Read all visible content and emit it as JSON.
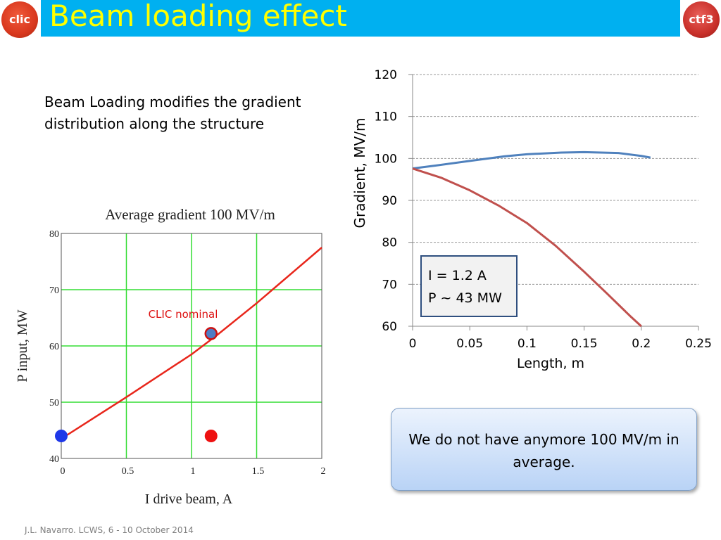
{
  "header": {
    "title": "Beam loading effect",
    "logo_left_text": "clic",
    "logo_right_text": "ctf3",
    "bar_color": "#00b0f0",
    "title_color": "#ffff00"
  },
  "intro_text": "Beam Loading modifies the gradient distribution along the structure",
  "callout_text": "We do not have anymore 100 MV/m in average.",
  "footer": "J.L. Navarro. LCWS, 6 - 10 October 2014",
  "chart_data": [
    {
      "type": "line",
      "title": "Average gradient 100 MV/m",
      "xlabel": "I drive beam, A",
      "ylabel": "P input, MW",
      "xlim": [
        0,
        2
      ],
      "ylim": [
        40,
        80
      ],
      "xticks": [
        "0",
        "0.5",
        "1",
        "1.5",
        "2"
      ],
      "yticks": [
        "40",
        "50",
        "60",
        "70",
        "80"
      ],
      "grid": true,
      "series": [
        {
          "color": "#e8261b",
          "x": [
            0,
            0.5,
            1.0,
            1.2,
            1.5,
            2.0
          ],
          "y": [
            43.5,
            50.9,
            58.5,
            62,
            67.6,
            77.5
          ]
        }
      ],
      "points": [
        {
          "x": 0,
          "y": 44,
          "color": "#1f38e8"
        },
        {
          "x": 1.15,
          "y": 62.2,
          "color": "#4f7cc4",
          "label": "CLIC nominal"
        },
        {
          "x": 1.15,
          "y": 44,
          "color": "#ee1111"
        }
      ]
    },
    {
      "type": "line",
      "xlabel": "Length, m",
      "ylabel": "Gradient, MV/m",
      "xlim": [
        0,
        0.25
      ],
      "ylim": [
        60,
        120
      ],
      "xticks": [
        "0",
        "0.05",
        "0.1",
        "0.15",
        "0.2",
        "0.25"
      ],
      "yticks": [
        "60",
        "70",
        "80",
        "90",
        "100",
        "110",
        "120"
      ],
      "grid": "horizontal-dashed",
      "annotation": {
        "line1": "I = 1.2 A",
        "line2": "P ~ 43 MW"
      },
      "series": [
        {
          "color": "#4f81bd",
          "x": [
            0,
            0.02,
            0.05,
            0.08,
            0.1,
            0.13,
            0.15,
            0.18,
            0.2,
            0.208
          ],
          "y": [
            97.6,
            98.3,
            99.4,
            100.5,
            101,
            101.4,
            101.5,
            101.3,
            100.6,
            100.2
          ]
        },
        {
          "color": "#c0504d",
          "x": [
            0,
            0.025,
            0.05,
            0.075,
            0.1,
            0.125,
            0.15,
            0.17,
            0.19,
            0.2
          ],
          "y": [
            97.6,
            95.4,
            92.4,
            88.8,
            84.6,
            79.2,
            73,
            67.8,
            62.5,
            60
          ]
        }
      ]
    }
  ]
}
